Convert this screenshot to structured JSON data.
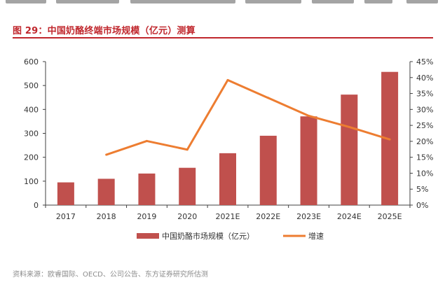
{
  "figure": {
    "title": "图 29：中国奶酪终端市场规模（亿元）测算",
    "source": "资料来源：欧睿国际、OECD、公司公告、东方证券研究所估测"
  },
  "colors": {
    "title": "#c0272d",
    "bar": "#c0504d",
    "line": "#ed7d31",
    "axis": "#404040"
  },
  "chart_data": {
    "type": "bar",
    "title": "",
    "categories": [
      "2017",
      "2018",
      "2019",
      "2020",
      "2021E",
      "2022E",
      "2023E",
      "2024E",
      "2025E"
    ],
    "series": [
      {
        "name": "中国奶酪市场规模（亿元）",
        "type": "bar",
        "axis": "left",
        "values": [
          95,
          110,
          132,
          156,
          217,
          290,
          371,
          462,
          557
        ]
      },
      {
        "name": "增速",
        "type": "line",
        "axis": "right",
        "values": [
          null,
          0.158,
          0.201,
          0.174,
          0.392,
          0.336,
          0.28,
          0.245,
          0.206
        ]
      }
    ],
    "y_left": {
      "ylim": [
        0,
        600
      ],
      "ticks": [
        "0",
        "100",
        "200",
        "300",
        "400",
        "500",
        "600"
      ]
    },
    "y_right": {
      "ylim": [
        0,
        0.45
      ],
      "ticks": [
        "0%",
        "5%",
        "10%",
        "15%",
        "20%",
        "25%",
        "30%",
        "35%",
        "40%",
        "45%"
      ]
    },
    "legend": "bottom",
    "grid": false
  }
}
